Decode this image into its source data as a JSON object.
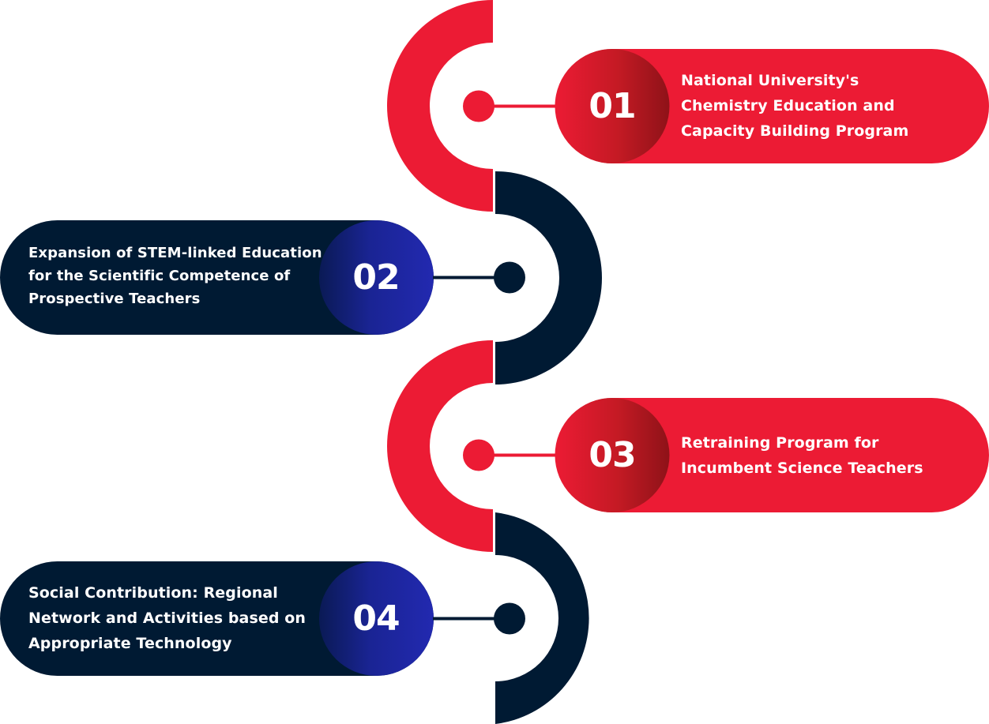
{
  "colors": {
    "red": "#EC1B34",
    "red_dark": "#8E1218",
    "navy": "#001A33",
    "blue": "#1F28A8",
    "blue_dark": "#0A1A55",
    "white": "#FFFFFF"
  },
  "steps": [
    {
      "number": "01",
      "side": "right",
      "color": "red",
      "lines": [
        "National University's",
        "Chemistry Education and",
        "Capacity Building Program"
      ]
    },
    {
      "number": "02",
      "side": "left",
      "color": "navy",
      "lines": [
        "Expansion of STEM-linked Education",
        "for the Scientific Competence of",
        "Prospective Teachers"
      ]
    },
    {
      "number": "03",
      "side": "right",
      "color": "red",
      "lines": [
        "Retraining Program for",
        "Incumbent Science Teachers"
      ]
    },
    {
      "number": "04",
      "side": "left",
      "color": "navy",
      "lines": [
        "Social Contribution: Regional",
        "Network and Activities based on",
        "Appropriate Technology"
      ]
    }
  ]
}
